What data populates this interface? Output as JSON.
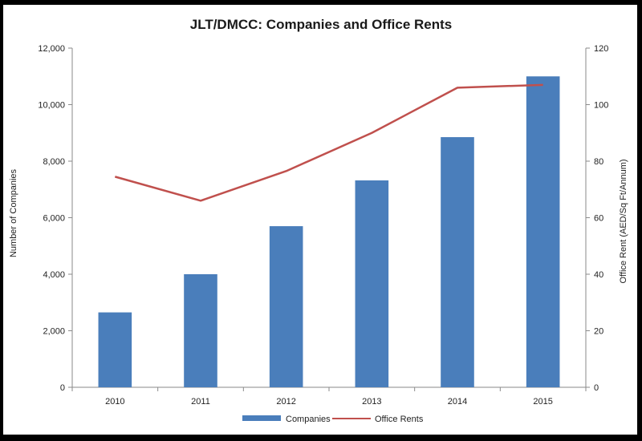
{
  "chart_data": {
    "type": "bar",
    "title": "JLT/DMCC: Companies and Office Rents",
    "categories": [
      "2010",
      "2011",
      "2012",
      "2013",
      "2014",
      "2015"
    ],
    "series": [
      {
        "name": "Companies",
        "type": "bar",
        "axis": "left",
        "color": "#4a7ebb",
        "values": [
          2650,
          4000,
          5700,
          7320,
          8850,
          11000
        ]
      },
      {
        "name": "Office Rents",
        "type": "line",
        "axis": "right",
        "color": "#c0504d",
        "values": [
          74.5,
          66,
          76.5,
          90,
          106,
          107
        ]
      }
    ],
    "ylabel": "Number of Companies",
    "y2label": "Office Rent  (AED/Sq Ft/Annum)",
    "ylim": [
      0,
      12000
    ],
    "y2lim": [
      0,
      120
    ],
    "yticks": [
      "0",
      "2,000",
      "4,000",
      "6,000",
      "8,000",
      "10,000",
      "12,000"
    ],
    "y2ticks": [
      "0",
      "20",
      "40",
      "60",
      "80",
      "100",
      "120"
    ],
    "legend_position": "bottom",
    "grid": false
  }
}
